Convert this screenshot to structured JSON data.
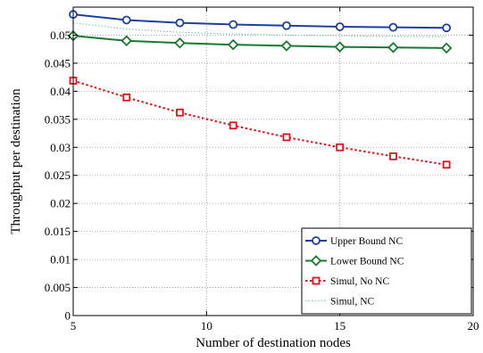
{
  "chart_data": {
    "type": "line",
    "xlabel": "Number of destination nodes",
    "ylabel": "Throughput per destination",
    "xlim": [
      5,
      20
    ],
    "ylim": [
      0,
      0.055
    ],
    "xticks": [
      5,
      10,
      15,
      20
    ],
    "xtick_labels": [
      "5",
      "10",
      "15",
      "20"
    ],
    "yticks": [
      0,
      0.005,
      0.01,
      0.015,
      0.02,
      0.025,
      0.03,
      0.035,
      0.04,
      0.045,
      0.05
    ],
    "ytick_labels": [
      "0",
      "0.005",
      "0.01",
      "0.015",
      "0.02",
      "0.025",
      "0.03",
      "0.035",
      "0.04",
      "0.045",
      "0.05"
    ],
    "grid": true,
    "legend_position": "bottom-right",
    "x": [
      5,
      7,
      9,
      11,
      13,
      15,
      17,
      19
    ],
    "series": [
      {
        "name": "Upper Bound NC",
        "color": "#1f3f9f",
        "line_style": "solid",
        "marker": "circle",
        "values": [
          0.0537,
          0.0527,
          0.0522,
          0.0519,
          0.0517,
          0.0515,
          0.0514,
          0.0513
        ]
      },
      {
        "name": "Lower Bound NC",
        "color": "#177a2f",
        "line_style": "solid",
        "marker": "diamond",
        "values": [
          0.0499,
          0.049,
          0.0486,
          0.0483,
          0.0481,
          0.0479,
          0.0478,
          0.0477
        ]
      },
      {
        "name": "Simul, No NC",
        "color": "#e0141c",
        "line_style": "dotted",
        "marker": "square",
        "values": [
          0.0419,
          0.0389,
          0.0362,
          0.0339,
          0.0318,
          0.03,
          0.0284,
          0.0269
        ]
      },
      {
        "name": "Simul, NC",
        "color": "#7fc9bf",
        "line_style": "dotted",
        "marker": "none",
        "values": [
          0.0522,
          0.0511,
          0.0505,
          0.0502,
          0.05,
          0.0499,
          0.0498,
          0.0497
        ]
      }
    ]
  }
}
